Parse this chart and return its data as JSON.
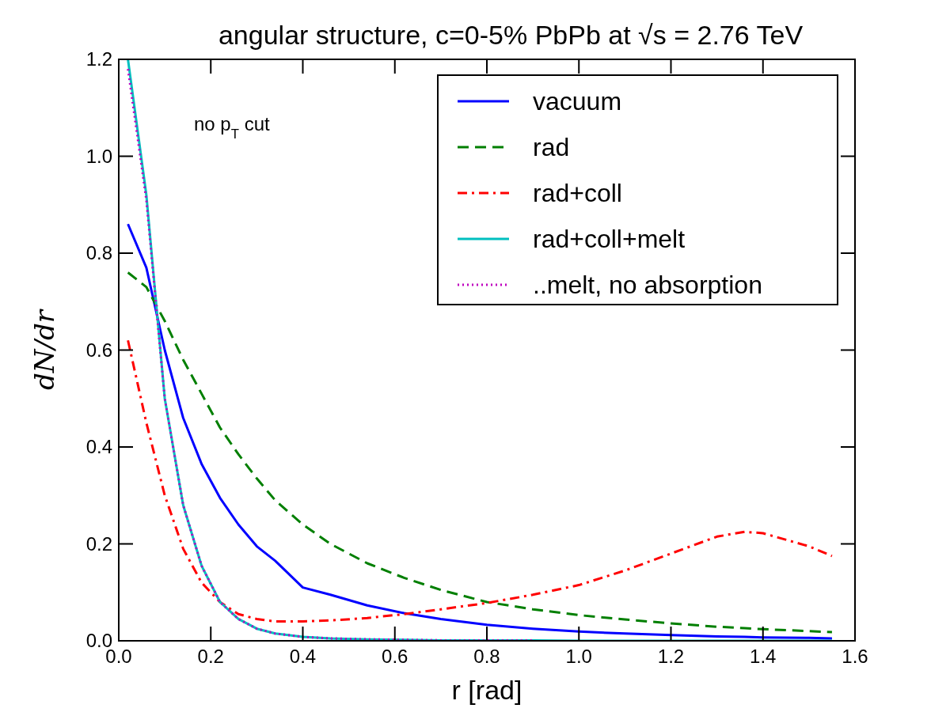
{
  "chart_data": {
    "type": "line",
    "title": "angular structure, c=0-5% PbPb at √s = 2.76 TeV",
    "xlabel": "r [rad]",
    "ylabel": "dN/dr",
    "annotations": [
      "no p$_{T}$ cut"
    ],
    "xlim": [
      0,
      1.6
    ],
    "ylim": [
      0,
      1.2
    ],
    "xticks": [
      {
        "value": 0,
        "label": "0.0"
      },
      0.2,
      0.4,
      0.6,
      0.8,
      {
        "value": 1,
        "label": "1.0"
      },
      1.2,
      1.4,
      1.6
    ],
    "yticks": [
      {
        "value": 0,
        "label": "0.0"
      },
      0.2,
      0.4,
      0.6,
      0.8,
      {
        "value": 1,
        "label": "1.0"
      },
      1.2
    ],
    "grid": false,
    "legend": "top right",
    "x": [
      0.02,
      0.06,
      0.1,
      0.14,
      0.18,
      0.22,
      0.26,
      0.3,
      0.34,
      0.4,
      0.46,
      0.54,
      0.62,
      0.7,
      0.8,
      0.9,
      1.0,
      1.1,
      1.2,
      1.3,
      1.36,
      1.4,
      1.5,
      1.55
    ],
    "series": [
      {
        "name": "vacuum",
        "color": "#0000ff",
        "line_style": "solid",
        "values": [
          0.86,
          0.77,
          0.6,
          0.46,
          0.365,
          0.295,
          0.24,
          0.195,
          0.165,
          0.11,
          0.095,
          0.073,
          0.057,
          0.045,
          0.033,
          0.025,
          0.019,
          0.015,
          0.012,
          0.009,
          0.008,
          0.007,
          0.006,
          0.005
        ]
      },
      {
        "name": "rad",
        "color": "#007f00",
        "line_style": "dashed",
        "values": [
          0.76,
          0.73,
          0.66,
          0.58,
          0.51,
          0.44,
          0.385,
          0.335,
          0.29,
          0.24,
          0.2,
          0.16,
          0.13,
          0.105,
          0.08,
          0.065,
          0.053,
          0.044,
          0.036,
          0.029,
          0.026,
          0.024,
          0.02,
          0.018
        ]
      },
      {
        "name": "rad+coll",
        "color": "#ff0000",
        "line_style": "dashdot",
        "values": [
          0.62,
          0.45,
          0.3,
          0.19,
          0.12,
          0.08,
          0.055,
          0.045,
          0.04,
          0.04,
          0.042,
          0.047,
          0.055,
          0.065,
          0.078,
          0.095,
          0.115,
          0.145,
          0.18,
          0.215,
          0.225,
          0.222,
          0.195,
          0.175
        ]
      },
      {
        "name": "rad+coll+melt",
        "color": "#00bfbf",
        "line_style": "solid",
        "values": [
          1.2,
          0.92,
          0.5,
          0.28,
          0.155,
          0.08,
          0.045,
          0.025,
          0.015,
          0.008,
          0.005,
          0.003,
          0.002,
          0.001,
          0.001,
          0.001,
          0,
          0,
          0,
          0,
          0,
          0,
          0,
          0
        ]
      },
      {
        "name": "..melt, no absorption",
        "color": "#bf00bf",
        "line_style": "dotted",
        "values": [
          1.18,
          0.91,
          0.5,
          0.28,
          0.155,
          0.08,
          0.045,
          0.025,
          0.015,
          0.008,
          0.005,
          0.003,
          0.002,
          0.001,
          0.001,
          0.001,
          null,
          null,
          null,
          null,
          null,
          null,
          null,
          null
        ]
      }
    ]
  }
}
